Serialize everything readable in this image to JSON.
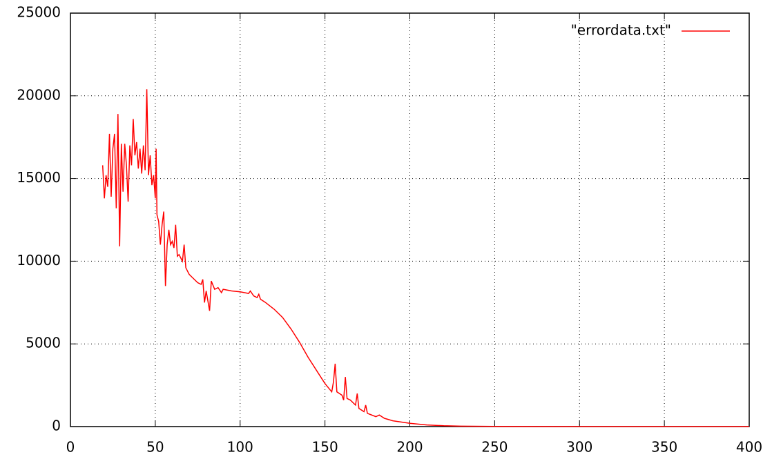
{
  "chart_data": {
    "type": "line",
    "x": [
      19,
      20,
      21,
      22,
      23,
      24,
      25,
      26,
      27,
      28,
      29,
      30,
      31,
      32,
      33,
      34,
      35,
      36,
      37,
      38,
      39,
      40,
      41,
      42,
      43,
      44,
      45,
      46,
      47,
      48,
      49,
      50,
      50.5,
      51,
      52,
      53,
      54,
      55,
      56,
      57,
      58,
      59,
      60,
      61,
      62,
      63,
      64,
      65,
      66,
      67,
      68,
      70,
      72,
      75,
      77,
      78,
      79,
      80,
      82,
      83,
      85,
      87,
      89,
      90,
      95,
      100,
      105,
      106,
      108,
      110,
      111,
      112,
      115,
      120,
      125,
      130,
      135,
      140,
      145,
      150,
      154,
      155,
      156,
      157,
      160,
      161,
      162,
      163,
      165,
      168,
      169,
      170,
      173,
      174,
      175,
      180,
      182,
      185,
      190,
      200,
      210,
      220,
      230,
      250,
      300,
      350,
      400
    ],
    "series": [
      {
        "name": "\"errordata.txt\"",
        "color": "#ff0000",
        "values": [
          15800,
          13800,
          15200,
          14500,
          17700,
          13900,
          16800,
          17700,
          13200,
          18900,
          10900,
          17100,
          14200,
          17100,
          15800,
          13600,
          17000,
          15800,
          18600,
          16400,
          17200,
          15600,
          16800,
          15300,
          17000,
          15500,
          20400,
          15200,
          16400,
          14600,
          15200,
          13800,
          16800,
          12800,
          12400,
          11000,
          12200,
          13000,
          8500,
          11000,
          11900,
          11000,
          11200,
          10800,
          12200,
          10300,
          10400,
          10200,
          10000,
          11000,
          9600,
          9200,
          9000,
          8700,
          8600,
          8900,
          7500,
          8200,
          7000,
          8800,
          8300,
          8400,
          8100,
          8300,
          8200,
          8150,
          8050,
          8200,
          7900,
          7800,
          8000,
          7700,
          7500,
          7100,
          6600,
          5900,
          5100,
          4200,
          3400,
          2600,
          2100,
          2700,
          3800,
          2100,
          1900,
          1600,
          3000,
          1700,
          1600,
          1300,
          2000,
          1100,
          900,
          1300,
          800,
          600,
          700,
          500,
          350,
          200,
          100,
          50,
          25,
          8,
          1,
          0,
          0
        ]
      }
    ],
    "xlim": [
      0,
      400
    ],
    "xticks": [
      0,
      50,
      100,
      150,
      200,
      250,
      300,
      350,
      400
    ],
    "ylim": [
      0,
      25000
    ],
    "yticks": [
      0,
      5000,
      10000,
      15000,
      20000,
      25000
    ],
    "grid": true,
    "legend": "top-right"
  }
}
